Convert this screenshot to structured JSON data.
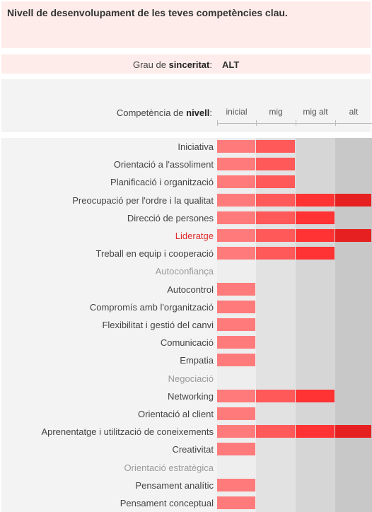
{
  "title": "Nivell de desenvolupament de les teves competències clau.",
  "sinceritat": {
    "label_pre": "Grau de ",
    "label_bold": "sinceritat",
    "label_post": ":",
    "value": "ALT"
  },
  "header": {
    "label_pre": "Competència de ",
    "label_bold": "nivell",
    "label_post": ":"
  },
  "chart_data": {
    "type": "bar",
    "orientation": "horizontal",
    "levels": [
      "inicial",
      "mig",
      "mig alt",
      "alt"
    ],
    "colors": {
      "level_fills": [
        "#ff7b7b",
        "#ff5959",
        "#ff3333",
        "#e62020"
      ],
      "column_backgrounds": [
        "#eeeeee",
        "#e2e2e2",
        "#d6d6d6",
        "#c8c8c8"
      ],
      "highlight_text": "#e02b2b",
      "muted_text": "#9a9a9a"
    },
    "categories": [
      {
        "name": "Iniciativa",
        "value": 2,
        "style": "normal"
      },
      {
        "name": "Orientació a l'assoliment",
        "value": 2,
        "style": "normal"
      },
      {
        "name": "Planificació i organització",
        "value": 2,
        "style": "normal"
      },
      {
        "name": "Preocupació per l'ordre i la qualitat",
        "value": 4,
        "style": "normal"
      },
      {
        "name": "Direcció de persones",
        "value": 3,
        "style": "normal"
      },
      {
        "name": "Lideratge",
        "value": 4,
        "style": "highlight"
      },
      {
        "name": "Treball en equip i cooperació",
        "value": 3,
        "style": "normal"
      },
      {
        "name": "Autoconfiança",
        "value": 0,
        "style": "muted"
      },
      {
        "name": "Autocontrol",
        "value": 1,
        "style": "normal"
      },
      {
        "name": "Compromís amb l'organització",
        "value": 1,
        "style": "normal"
      },
      {
        "name": "Flexibilitat i gestió del canvi",
        "value": 1,
        "style": "normal"
      },
      {
        "name": "Comunicació",
        "value": 1,
        "style": "normal"
      },
      {
        "name": "Empatia",
        "value": 1,
        "style": "normal"
      },
      {
        "name": "Negociació",
        "value": 0,
        "style": "muted"
      },
      {
        "name": "Networking",
        "value": 3,
        "style": "normal"
      },
      {
        "name": "Orientació al client",
        "value": 1,
        "style": "normal"
      },
      {
        "name": "Aprenentatge i utilització de coneixements",
        "value": 4,
        "style": "normal"
      },
      {
        "name": "Creativitat",
        "value": 1,
        "style": "normal"
      },
      {
        "name": "Orientació estratègica",
        "value": 0,
        "style": "muted"
      },
      {
        "name": "Pensament analític",
        "value": 1,
        "style": "normal"
      },
      {
        "name": "Pensament conceptual",
        "value": 1,
        "style": "normal"
      }
    ]
  }
}
